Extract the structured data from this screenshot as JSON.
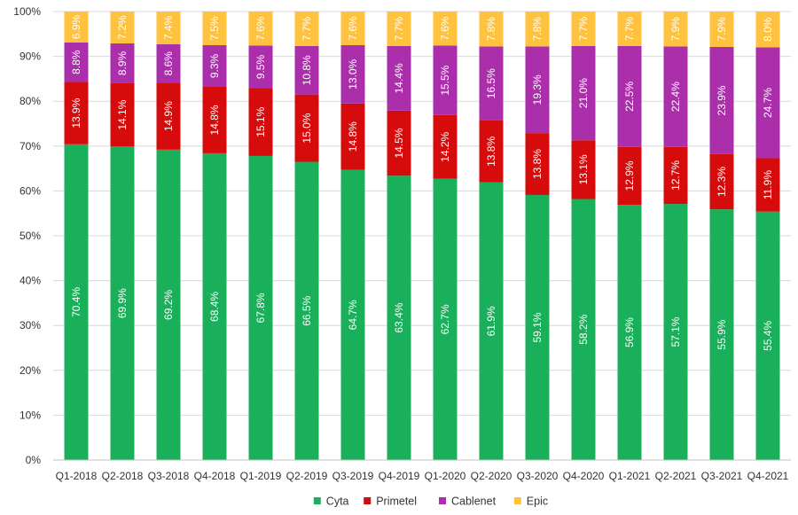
{
  "chart_data": {
    "type": "bar",
    "stacked": true,
    "title": "",
    "xlabel": "",
    "ylabel": "",
    "ylim": [
      0,
      100
    ],
    "yticks": [
      "0%",
      "10%",
      "20%",
      "30%",
      "40%",
      "50%",
      "60%",
      "70%",
      "80%",
      "90%",
      "100%"
    ],
    "grid": true,
    "legend_position": "bottom",
    "categories": [
      "Q1-2018",
      "Q2-2018",
      "Q3-2018",
      "Q4-2018",
      "Q1-2019",
      "Q2-2019",
      "Q3-2019",
      "Q4-2019",
      "Q1-2020",
      "Q2-2020",
      "Q3-2020",
      "Q4-2020",
      "Q1-2021",
      "Q2-2021",
      "Q3-2021",
      "Q4-2021"
    ],
    "series": [
      {
        "name": "Cyta",
        "color": "#1aaf5a",
        "label_color": "#ffffff",
        "values": [
          70.4,
          69.9,
          69.2,
          68.4,
          67.8,
          66.5,
          64.7,
          63.4,
          62.7,
          61.9,
          59.1,
          58.2,
          56.9,
          57.1,
          55.9,
          55.4
        ],
        "labels": [
          "70.4%",
          "69.9%",
          "69.2%",
          "68.4%",
          "67.8%",
          "66.5%",
          "64.7%",
          "63.4%",
          "62.7%",
          "61.9%",
          "59.1%",
          "58.2%",
          "56.9%",
          "57.1%",
          "55.9%",
          "55.4%"
        ]
      },
      {
        "name": "Primetel",
        "color": "#d60c0c",
        "label_color": "#ffffff",
        "values": [
          13.9,
          14.1,
          14.9,
          14.8,
          15.1,
          15.0,
          14.8,
          14.5,
          14.2,
          13.8,
          13.8,
          13.1,
          12.9,
          12.7,
          12.3,
          11.9
        ],
        "labels": [
          "13.9%",
          "14.1%",
          "14.9%",
          "14.8%",
          "15.1%",
          "15.0%",
          "14.8%",
          "14.5%",
          "14.2%",
          "13.8%",
          "13.8%",
          "13.1%",
          "12.9%",
          "12.7%",
          "12.3%",
          "11.9%"
        ]
      },
      {
        "name": "Cablenet",
        "color": "#ab2fab",
        "label_color": "#ffffff",
        "values": [
          8.8,
          8.9,
          8.6,
          9.3,
          9.5,
          10.8,
          13.0,
          14.4,
          15.5,
          16.5,
          19.3,
          21.0,
          22.5,
          22.4,
          23.9,
          24.7
        ],
        "labels": [
          "8.8%",
          "8.9%",
          "8.6%",
          "9.3%",
          "9.5%",
          "10.8%",
          "13.0%",
          "14.4%",
          "15.5%",
          "16.5%",
          "19.3%",
          "21.0%",
          "22.5%",
          "22.4%",
          "23.9%",
          "24.7%"
        ]
      },
      {
        "name": "Epic",
        "color": "#ffc23e",
        "label_color": "#ffffff",
        "values": [
          6.9,
          7.2,
          7.4,
          7.5,
          7.6,
          7.7,
          7.6,
          7.7,
          7.6,
          7.8,
          7.8,
          7.7,
          7.7,
          7.9,
          7.9,
          8.0
        ],
        "labels": [
          "6.9%",
          "7.2%",
          "7.4%",
          "7.5%",
          "7.6%",
          "7.7%",
          "7.6%",
          "7.7%",
          "7.6%",
          "7.8%",
          "7.8%",
          "7.7%",
          "7.7%",
          "7.9%",
          "7.9%",
          "8.0%"
        ]
      }
    ]
  }
}
